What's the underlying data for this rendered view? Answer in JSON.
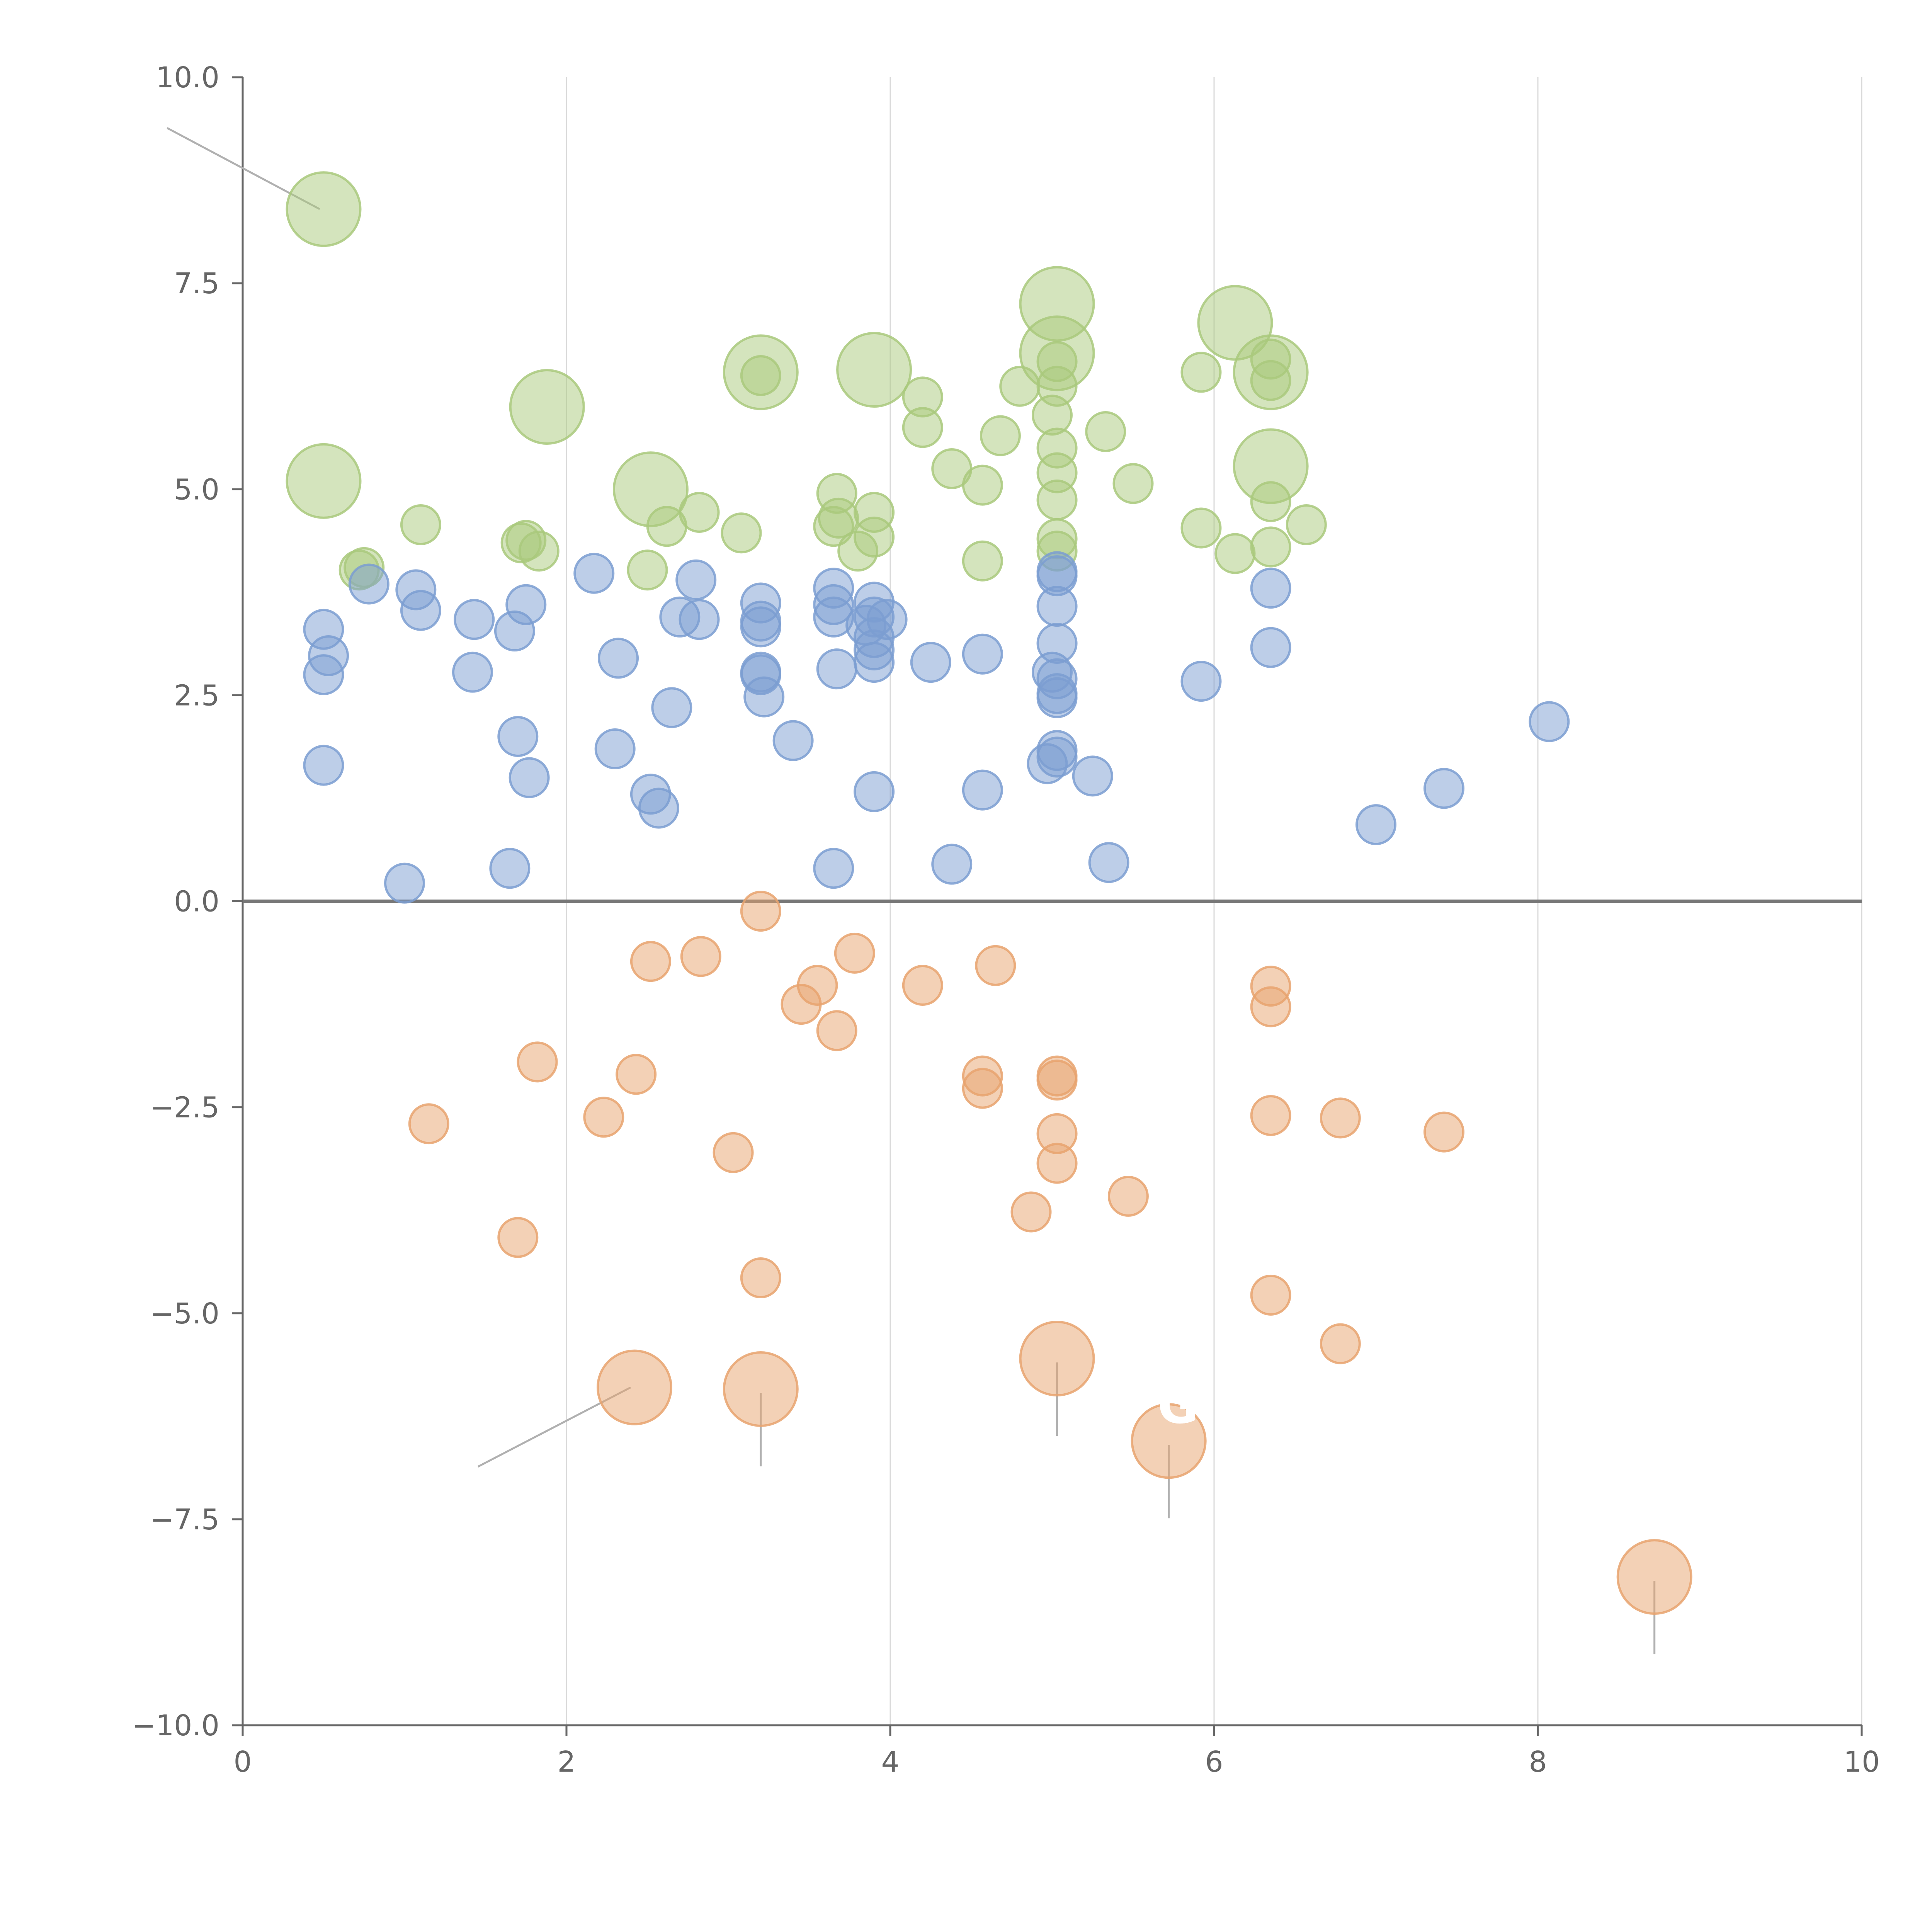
{
  "chart_data": {
    "type": "scatter",
    "title": "",
    "xlabel": "",
    "ylabel": "",
    "xlim": [
      0,
      10
    ],
    "ylim": [
      -10,
      10
    ],
    "x_ticks": [
      0,
      2,
      4,
      6,
      8,
      10
    ],
    "x_tick_labels": [
      "0",
      "2",
      "4",
      "6",
      "8",
      "10"
    ],
    "y_ticks": [
      -10,
      -7.5,
      -5,
      -2.5,
      0,
      2.5,
      5,
      7.5,
      10
    ],
    "y_tick_labels": [
      "−10.0",
      "−7.5",
      "−5.0",
      "−2.5",
      "0.0",
      "2.5",
      "5.0",
      "7.5",
      "10.0"
    ],
    "grid": "vertical",
    "legend": "none",
    "colors": {
      "green": "#a9c97c",
      "blue": "#7b9dd1",
      "orange": "#e8a36e"
    },
    "series": [
      {
        "name": "green",
        "color": "#a9c97c",
        "points": [
          [
            0.5,
            8.4,
            3
          ],
          [
            0.5,
            5.1,
            3
          ],
          [
            1.88,
            6.0,
            3
          ],
          [
            2.52,
            5.0,
            3
          ],
          [
            3.2,
            6.42,
            3
          ],
          [
            3.9,
            6.45,
            3
          ],
          [
            5.03,
            7.25,
            3
          ],
          [
            5.03,
            6.65,
            3
          ],
          [
            6.13,
            7.02,
            3
          ],
          [
            6.35,
            6.42,
            3
          ],
          [
            6.35,
            5.28,
            3
          ],
          [
            0.72,
            4.02,
            1
          ],
          [
            0.75,
            4.05,
            1
          ],
          [
            1.1,
            4.57,
            1
          ],
          [
            1.72,
            4.35,
            1
          ],
          [
            1.75,
            4.38,
            1
          ],
          [
            1.83,
            4.25,
            1
          ],
          [
            2.5,
            4.02,
            1
          ],
          [
            2.62,
            4.55,
            1
          ],
          [
            2.82,
            4.72,
            1
          ],
          [
            3.08,
            4.47,
            1
          ],
          [
            3.2,
            6.38,
            1
          ],
          [
            3.65,
            4.55,
            1
          ],
          [
            3.67,
            4.95,
            1
          ],
          [
            3.68,
            4.65,
            1
          ],
          [
            3.8,
            4.25,
            1
          ],
          [
            3.9,
            4.72,
            1
          ],
          [
            3.9,
            4.42,
            1
          ],
          [
            4.2,
            6.12,
            1
          ],
          [
            4.2,
            5.75,
            1
          ],
          [
            4.38,
            5.25,
            1
          ],
          [
            4.57,
            5.05,
            1
          ],
          [
            4.57,
            4.13,
            1
          ],
          [
            4.68,
            5.65,
            1
          ],
          [
            4.8,
            6.25,
            1
          ],
          [
            5.0,
            5.9,
            1
          ],
          [
            5.03,
            6.55,
            1
          ],
          [
            5.03,
            6.25,
            1
          ],
          [
            5.03,
            5.5,
            1
          ],
          [
            5.03,
            5.2,
            1
          ],
          [
            5.03,
            4.87,
            1
          ],
          [
            5.03,
            4.4,
            1
          ],
          [
            5.03,
            4.25,
            1
          ],
          [
            5.33,
            5.7,
            1
          ],
          [
            5.5,
            5.07,
            1
          ],
          [
            5.92,
            6.42,
            1
          ],
          [
            5.92,
            4.53,
            1
          ],
          [
            6.13,
            4.22,
            1
          ],
          [
            6.35,
            6.58,
            1
          ],
          [
            6.35,
            6.32,
            1
          ],
          [
            6.35,
            4.85,
            1
          ],
          [
            6.35,
            4.3,
            1
          ],
          [
            6.57,
            4.57,
            1
          ]
        ]
      },
      {
        "name": "blue",
        "color": "#7b9dd1",
        "points": [
          [
            0.5,
            3.3,
            1
          ],
          [
            0.53,
            2.98,
            1
          ],
          [
            0.5,
            2.75,
            1
          ],
          [
            0.5,
            1.65,
            1
          ],
          [
            0.78,
            3.85,
            1
          ],
          [
            1.07,
            3.78,
            1
          ],
          [
            1.1,
            3.53,
            1
          ],
          [
            1.0,
            0.22,
            1
          ],
          [
            1.43,
            3.42,
            1
          ],
          [
            1.42,
            2.78,
            1
          ],
          [
            1.68,
            3.28,
            1
          ],
          [
            1.75,
            3.6,
            1
          ],
          [
            1.7,
            2.0,
            1
          ],
          [
            1.77,
            1.5,
            1
          ],
          [
            1.65,
            0.4,
            1
          ],
          [
            2.17,
            3.98,
            1
          ],
          [
            2.32,
            2.95,
            1
          ],
          [
            2.3,
            1.85,
            1
          ],
          [
            2.52,
            1.3,
            1
          ],
          [
            2.57,
            1.13,
            1
          ],
          [
            2.65,
            2.35,
            1
          ],
          [
            2.7,
            3.45,
            1
          ],
          [
            2.8,
            3.9,
            1
          ],
          [
            2.82,
            3.42,
            1
          ],
          [
            3.2,
            3.62,
            1
          ],
          [
            3.2,
            3.4,
            1
          ],
          [
            3.2,
            3.33,
            1
          ],
          [
            3.2,
            2.78,
            1
          ],
          [
            3.2,
            2.75,
            1
          ],
          [
            3.22,
            2.48,
            1
          ],
          [
            3.4,
            1.95,
            1
          ],
          [
            3.65,
            3.8,
            1
          ],
          [
            3.65,
            3.6,
            1
          ],
          [
            3.65,
            3.45,
            1
          ],
          [
            3.67,
            2.82,
            1
          ],
          [
            3.65,
            0.4,
            1
          ],
          [
            3.9,
            3.63,
            1
          ],
          [
            3.9,
            3.45,
            1
          ],
          [
            3.85,
            3.35,
            1
          ],
          [
            3.9,
            3.2,
            1
          ],
          [
            3.9,
            3.05,
            1
          ],
          [
            3.9,
            2.9,
            1
          ],
          [
            3.98,
            3.42,
            1
          ],
          [
            3.9,
            1.33,
            1
          ],
          [
            4.25,
            2.9,
            1
          ],
          [
            4.38,
            0.45,
            1
          ],
          [
            4.57,
            3.0,
            1
          ],
          [
            4.57,
            1.35,
            1
          ],
          [
            4.97,
            1.67,
            1
          ],
          [
            5.03,
            4.0,
            1
          ],
          [
            5.03,
            3.95,
            1
          ],
          [
            5.03,
            3.58,
            1
          ],
          [
            5.03,
            3.13,
            1
          ],
          [
            5.0,
            2.78,
            1
          ],
          [
            5.03,
            2.7,
            1
          ],
          [
            5.03,
            2.52,
            1
          ],
          [
            5.03,
            2.47,
            1
          ],
          [
            5.03,
            1.83,
            1
          ],
          [
            5.03,
            1.75,
            1
          ],
          [
            5.25,
            1.52,
            1
          ],
          [
            5.35,
            0.47,
            1
          ],
          [
            5.92,
            2.67,
            1
          ],
          [
            6.35,
            3.8,
            1
          ],
          [
            6.35,
            3.08,
            1
          ],
          [
            7.0,
            0.93,
            1
          ],
          [
            7.42,
            1.37,
            1
          ],
          [
            8.07,
            2.18,
            1
          ]
        ]
      },
      {
        "name": "orange",
        "color": "#e8a36e",
        "points": [
          [
            3.2,
            -0.12,
            1
          ],
          [
            2.52,
            -0.73,
            1
          ],
          [
            2.83,
            -0.67,
            1
          ],
          [
            3.55,
            -1.02,
            1
          ],
          [
            3.45,
            -1.25,
            1
          ],
          [
            3.78,
            -0.63,
            1
          ],
          [
            3.67,
            -1.57,
            1
          ],
          [
            4.2,
            -1.02,
            1
          ],
          [
            4.65,
            -0.78,
            1
          ],
          [
            1.82,
            -1.95,
            1
          ],
          [
            2.43,
            -2.1,
            1
          ],
          [
            2.23,
            -2.62,
            1
          ],
          [
            1.15,
            -2.7,
            1
          ],
          [
            3.03,
            -3.05,
            1
          ],
          [
            1.7,
            -4.08,
            1
          ],
          [
            3.2,
            -4.57,
            1
          ],
          [
            4.57,
            -2.12,
            1
          ],
          [
            4.57,
            -2.27,
            1
          ],
          [
            5.03,
            -2.12,
            1
          ],
          [
            5.03,
            -2.17,
            1
          ],
          [
            5.03,
            -2.82,
            1
          ],
          [
            5.03,
            -3.18,
            1
          ],
          [
            4.87,
            -3.77,
            1
          ],
          [
            5.47,
            -3.58,
            1
          ],
          [
            6.35,
            -1.03,
            1
          ],
          [
            6.35,
            -1.28,
            1
          ],
          [
            6.35,
            -2.6,
            1
          ],
          [
            6.35,
            -4.78,
            1
          ],
          [
            6.78,
            -2.63,
            1
          ],
          [
            6.78,
            -5.37,
            1
          ],
          [
            7.42,
            -2.8,
            1
          ],
          [
            2.42,
            -5.9,
            3
          ],
          [
            3.2,
            -5.92,
            3
          ],
          [
            5.03,
            -5.55,
            3
          ],
          [
            5.72,
            -6.55,
            3
          ],
          [
            8.72,
            -8.2,
            3
          ]
        ]
      }
    ],
    "annotations": [
      {
        "text": "G",
        "x": 5.65,
        "y": -6.33
      }
    ]
  }
}
